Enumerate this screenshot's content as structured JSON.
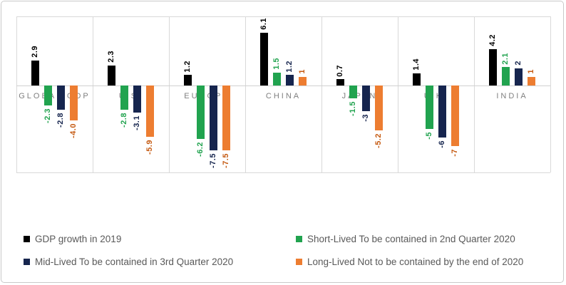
{
  "chart_data": {
    "type": "bar",
    "title": "",
    "xlabel": "",
    "ylabel": "",
    "ylim": [
      -10,
      8
    ],
    "grid": "vertical-category-separators, top/bottom/zero horizontal lines",
    "legend_position": "bottom, two columns",
    "bar_label_rotation": "vertical, reads bottom-to-top",
    "categories": [
      "GLOBAL GDP",
      "U.S.",
      "EUROPE",
      "CHINA",
      "JAPAN",
      "U.K.",
      "INDIA"
    ],
    "series": [
      {
        "name": "GDP growth in 2019",
        "color": "#000000",
        "label_color": "#000000",
        "values": [
          2.9,
          2.3,
          1.2,
          6.1,
          0.7,
          1.4,
          4.2
        ],
        "labels": [
          "2.9",
          "2.3",
          "1.2",
          "6.1",
          "0.7",
          "1.4",
          "4.2"
        ]
      },
      {
        "name": "Short-Lived To be contained in 2nd Quarter 2020",
        "color": "#21a34f",
        "label_color": "#21a34f",
        "values": [
          -2.3,
          -2.8,
          -6.2,
          1.5,
          -1.5,
          -5,
          2.1
        ],
        "labels": [
          "-2.3",
          "-2.8",
          "-6.2",
          "1.5",
          "-1.5",
          "-5",
          "2.1"
        ]
      },
      {
        "name": "Mid-Lived To be contained in 3rd Quarter 2020",
        "color": "#16254e",
        "label_color": "#16254e",
        "values": [
          -2.8,
          -3.1,
          -7.5,
          1.2,
          -3,
          -6,
          2
        ],
        "labels": [
          "-2.8",
          "-3.1",
          "-7.5",
          "1.2",
          "-3",
          "-6",
          "2"
        ]
      },
      {
        "name": "Long-Lived Not to be contained by the end of 2020",
        "color": "#ed7d31",
        "label_color": "#c55a11",
        "values": [
          -4.0,
          -5.9,
          -7.5,
          1,
          -5.2,
          -7,
          1
        ],
        "labels": [
          "-4.0",
          "-5.9",
          "-7.5",
          "1",
          "-5.2",
          "-7",
          "1"
        ]
      }
    ],
    "colors": {
      "gridline": "#d9d9d9",
      "category_label": "#7f7f7f",
      "legend_text": "#595959",
      "frame_border": "#c9c9c9"
    }
  }
}
